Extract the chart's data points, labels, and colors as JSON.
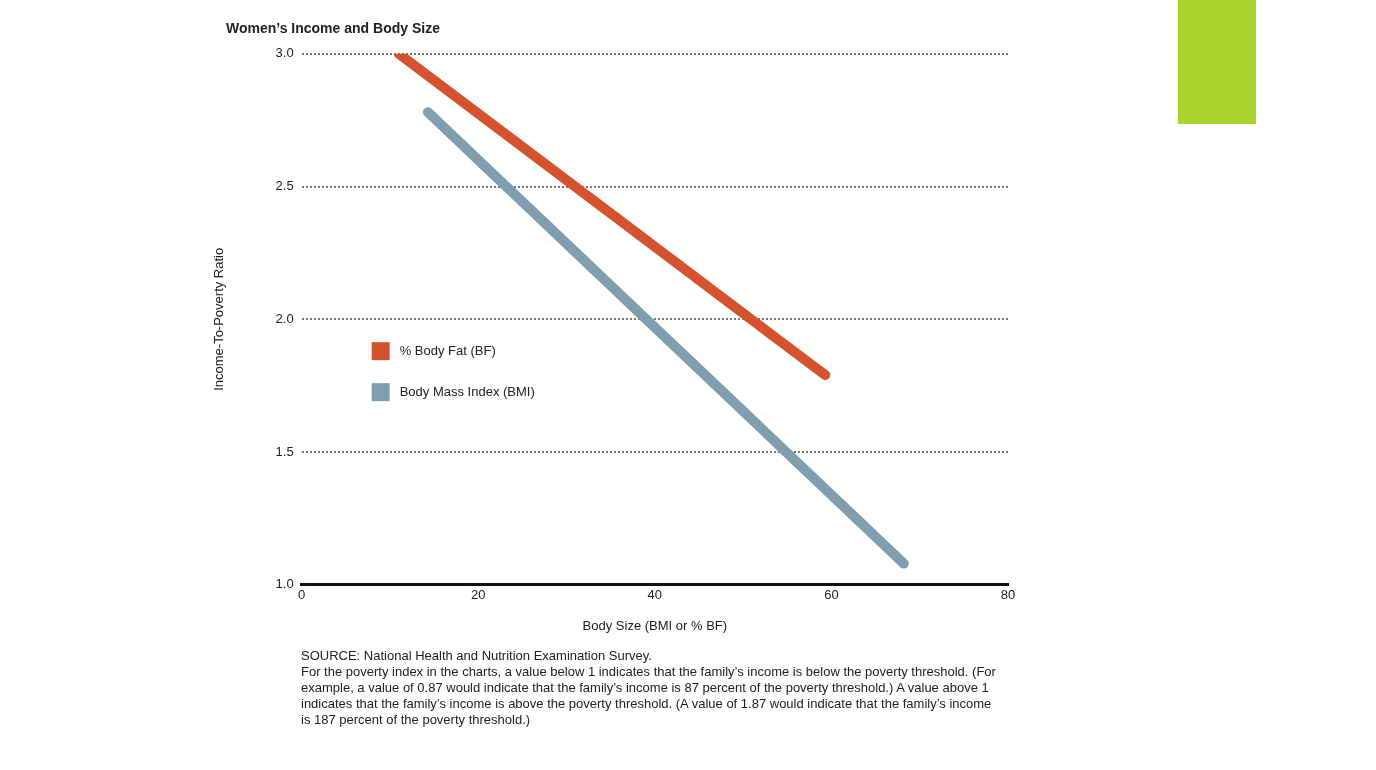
{
  "chart_data": {
    "type": "line",
    "title": "Women’s Income and Body Size",
    "xlabel": "Body Size (BMI or % BF)",
    "ylabel": "Income-To-Poverty Ratio",
    "xlim": [
      0,
      80
    ],
    "xticks": [
      0,
      20,
      40,
      60,
      80
    ],
    "ylim": [
      1.0,
      3.0
    ],
    "yticks": [
      {
        "value": 1.0,
        "label": "1.0"
      },
      {
        "value": 1.5,
        "label": "1.5"
      },
      {
        "value": 2.0,
        "label": "2.0"
      },
      {
        "value": 2.5,
        "label": "2.5"
      },
      {
        "value": 3.0,
        "label": "3.0"
      }
    ],
    "grid": "y",
    "legend": "left",
    "marker": "none",
    "series": [
      {
        "name": "% Body Fat (BF)",
        "color": "#d4532e",
        "x": [
          11,
          59.3
        ],
        "values": [
          3.0,
          1.79
        ]
      },
      {
        "name": "Body Mass Index (BMI)",
        "color": "#7f9fb0",
        "x": [
          14.3,
          68.2
        ],
        "values": [
          2.78,
          1.08
        ]
      }
    ],
    "annotations": [
      "SOURCE: National Health and Nutrition Examination Survey.",
      "For the poverty index in the charts, a value below 1 indicates that the family’s income is below the poverty threshold. (For example, a value of 0.87 would indicate that the family’s income is 87 percent of the poverty threshold.) A value above 1 indicates that the family’s income is above the poverty threshold. (A value of 1.87 would indicate that the family’s income is 187 percent of the poverty threshold.)"
    ]
  }
}
